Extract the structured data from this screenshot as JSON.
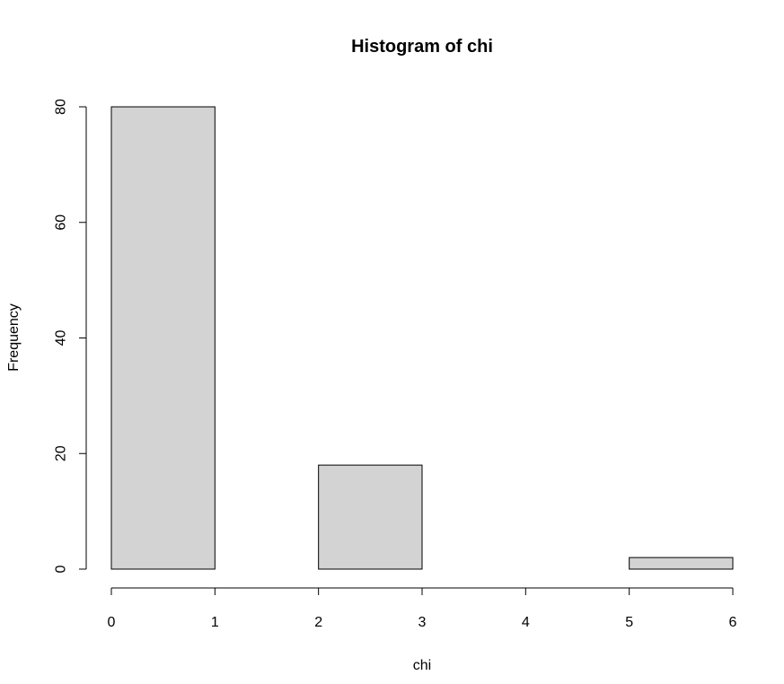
{
  "chart_data": {
    "type": "bar",
    "title": "Histogram of chi",
    "xlabel": "chi",
    "ylabel": "Frequency",
    "bins": [
      {
        "start": 0,
        "end": 1,
        "count": 80
      },
      {
        "start": 1,
        "end": 2,
        "count": 0
      },
      {
        "start": 2,
        "end": 3,
        "count": 18
      },
      {
        "start": 3,
        "end": 4,
        "count": 0
      },
      {
        "start": 4,
        "end": 5,
        "count": 0
      },
      {
        "start": 5,
        "end": 6,
        "count": 2
      }
    ],
    "xlim": [
      0,
      6
    ],
    "ylim": [
      0,
      80
    ],
    "x_ticks": [
      "0",
      "1",
      "2",
      "3",
      "4",
      "5",
      "6"
    ],
    "y_ticks": [
      "0",
      "20",
      "40",
      "60",
      "80"
    ],
    "bar_fill": "#d3d3d3",
    "grid": false
  }
}
